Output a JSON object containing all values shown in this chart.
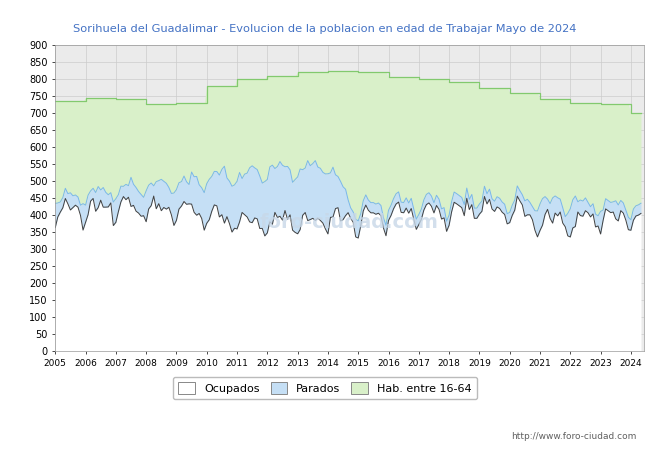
{
  "title": "Sorihuela del Guadalimar - Evolucion de la poblacion en edad de Trabajar Mayo de 2024",
  "title_color": "#4472c4",
  "color_parados_fill": "#c5dff5",
  "color_hab_fill": "#d9f0c9",
  "line_ocupados": "#404040",
  "line_parados": "#7ab8e8",
  "line_hab": "#82c96e",
  "background_plot": "#ebebeb",
  "background_fig": "#ffffff",
  "watermark": "http://www.foro-ciudad.com",
  "watermark_center": "foro-ciudad.com",
  "ylim": [
    0,
    900
  ],
  "yticks": [
    0,
    50,
    100,
    150,
    200,
    250,
    300,
    350,
    400,
    450,
    500,
    550,
    600,
    650,
    700,
    750,
    800,
    850,
    900
  ],
  "legend_labels": [
    "Ocupados",
    "Parados",
    "Hab. entre 16-64"
  ],
  "hab_annual": [
    735,
    745,
    740,
    725,
    728,
    780,
    800,
    810,
    820,
    825,
    820,
    805,
    800,
    790,
    775,
    760,
    740,
    730,
    725,
    700
  ],
  "hab_years": [
    2005,
    2006,
    2007,
    2008,
    2009,
    2010,
    2011,
    2012,
    2013,
    2014,
    2015,
    2016,
    2017,
    2018,
    2019,
    2020,
    2021,
    2022,
    2023,
    2024
  ]
}
